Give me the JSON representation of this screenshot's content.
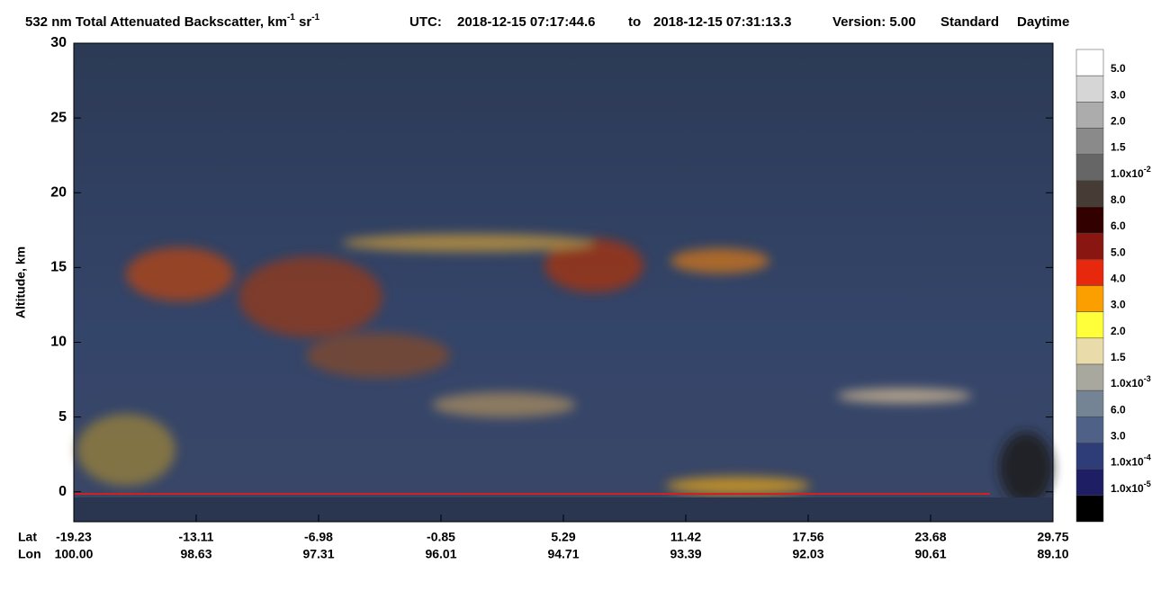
{
  "chart_data": {
    "type": "curtain",
    "title": {
      "text1": "532 nm Total Attenuated Backscatter, km",
      "sup1": "-1",
      "text2": " sr",
      "sup2": "-1"
    },
    "utc_label": "UTC:",
    "start": "2018-12-15 07:17:44.6",
    "to": "to",
    "end": "2018-12-15 07:31:13.3",
    "version": "Version: 5.00",
    "product": "Standard",
    "time_of_day": "Daytime",
    "y_label": "Altitude, km",
    "ylim": [
      -2,
      30
    ],
    "yticks": [
      0,
      5,
      10,
      15,
      20,
      25,
      30
    ],
    "lat_label": "Lat",
    "lon_label": "Lon",
    "lat": [
      "-19.23",
      "-13.11",
      "-6.98",
      "-0.85",
      "5.29",
      "11.42",
      "17.56",
      "23.68",
      "29.75"
    ],
    "lon": [
      "100.00",
      "98.63",
      "97.31",
      "96.01",
      "94.71",
      "93.39",
      "92.03",
      "90.61",
      "89.10"
    ],
    "colorbar": {
      "colors": [
        "#ffffff",
        "#d6d6d6",
        "#acacac",
        "#8a8a8a",
        "#666666",
        "#473b36",
        "#330000",
        "#891611",
        "#e8280c",
        "#fb9e00",
        "#ffff3a",
        "#eadcaa",
        "#a8a89e",
        "#748494",
        "#4f6187",
        "#2e3d78",
        "#1d1e63",
        "#000000"
      ],
      "labels": [
        {
          "text": "5.0"
        },
        {
          "text": "3.0"
        },
        {
          "text": "2.0"
        },
        {
          "text": "1.5"
        },
        {
          "text": "1.0x10",
          "exp": "-2"
        },
        {
          "text": "8.0"
        },
        {
          "text": "6.0"
        },
        {
          "text": "5.0"
        },
        {
          "text": "4.0"
        },
        {
          "text": "3.0"
        },
        {
          "text": "2.0"
        },
        {
          "text": "1.5"
        },
        {
          "text": "1.0x10",
          "exp": "-3"
        },
        {
          "text": "6.0"
        },
        {
          "text": "3.0"
        },
        {
          "text": "1.0x10",
          "exp": "-4"
        },
        {
          "text": "1.0x10",
          "exp": "-5"
        }
      ]
    }
  }
}
